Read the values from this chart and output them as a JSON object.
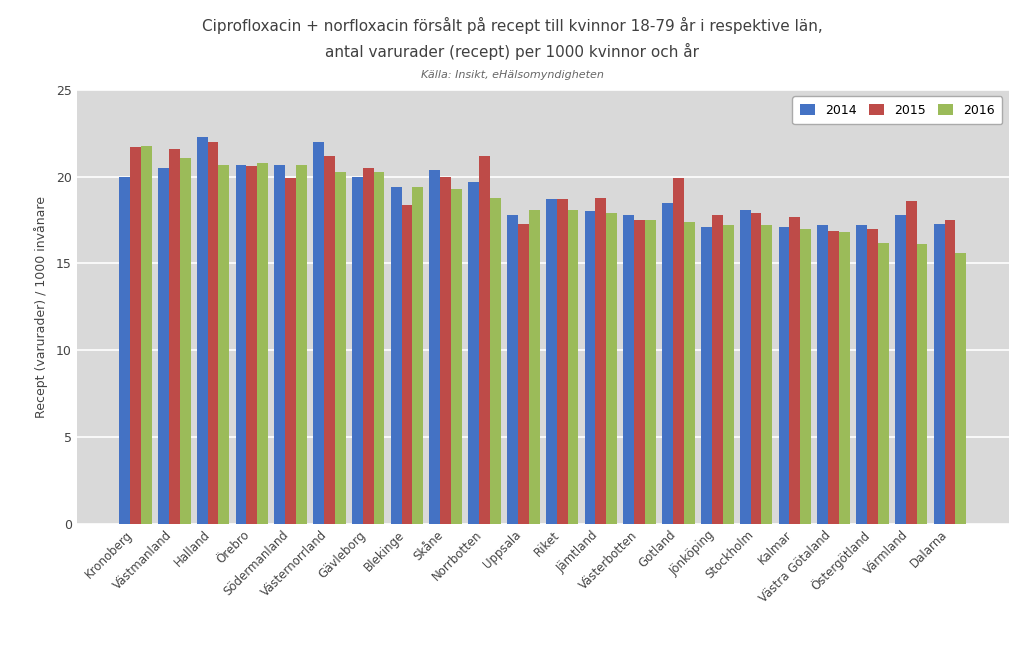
{
  "title_line1": "Ciprofloxacin + norfloxacin försålt på recept till kvinnor 18-79 år i respektive län,",
  "title_line2": "antal varurader (recept) per 1000 kvinnor och år",
  "subtitle": "Källa: Insikt, eHälsomyndigheten",
  "ylabel": "Recept (varurader) / 1000 invånare",
  "ylim": [
    0,
    25
  ],
  "yticks": [
    0,
    5,
    10,
    15,
    20,
    25
  ],
  "categories": [
    "Kronoberg",
    "Västmanland",
    "Halland",
    "Örebro",
    "Södermanland",
    "Västernorrland",
    "Gävleborg",
    "Blekinge",
    "Skåne",
    "Norrbotten",
    "Uppsala",
    "Riket",
    "Jämtland",
    "Västerbotten",
    "Gotland",
    "Jönköping",
    "Stockholm",
    "Kalmar",
    "Västra Götaland",
    "Östergötland",
    "Värmland",
    "Dalarna"
  ],
  "data_2014": [
    20.0,
    20.5,
    22.3,
    20.7,
    20.7,
    22.0,
    20.0,
    19.4,
    20.4,
    19.7,
    17.8,
    18.7,
    18.0,
    17.8,
    18.5,
    17.1,
    18.1,
    17.1,
    17.2,
    17.2,
    17.8,
    17.3
  ],
  "data_2015": [
    21.7,
    21.6,
    22.0,
    20.6,
    19.9,
    21.2,
    20.5,
    18.4,
    20.0,
    21.2,
    17.3,
    18.7,
    18.8,
    17.5,
    19.9,
    17.8,
    17.9,
    17.7,
    16.9,
    17.0,
    18.6,
    17.5
  ],
  "data_2016": [
    21.8,
    21.1,
    20.7,
    20.8,
    20.7,
    20.3,
    20.3,
    19.4,
    19.3,
    18.8,
    18.1,
    18.1,
    17.9,
    17.5,
    17.4,
    17.2,
    17.2,
    17.0,
    16.8,
    16.2,
    16.1,
    15.6
  ],
  "color_2014": "#4472C4",
  "color_2015": "#BE4B48",
  "color_2016": "#9BBB59",
  "background_color": "#FFFFFF",
  "grid_color": "#FFFFFF",
  "plot_bg_color": "#D9D9D9",
  "legend_labels": [
    "2014",
    "2015",
    "2016"
  ],
  "bar_width": 0.28
}
